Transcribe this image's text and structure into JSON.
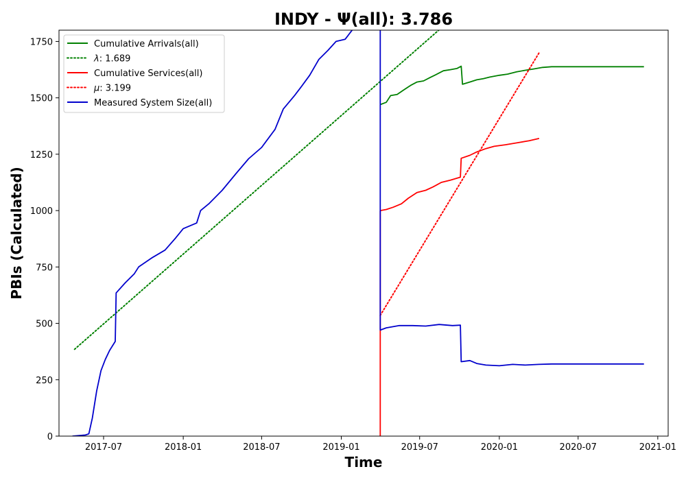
{
  "chart_data": {
    "type": "line",
    "title": "INDY -  Ψ(all): 3.786",
    "xlabel": "Time",
    "ylabel": "PBIs (Calculated)",
    "xlim": [
      "2017-03-20",
      "2021-01-25"
    ],
    "ylim": [
      0,
      1800
    ],
    "grid": false,
    "legend_position": "upper-left",
    "x_ticks": [
      "2017-07",
      "2018-01",
      "2018-07",
      "2019-01",
      "2019-07",
      "2020-01",
      "2020-07",
      "2021-01"
    ],
    "x_tick_dates": [
      "2017-07-01",
      "2018-01-01",
      "2018-07-01",
      "2019-01-01",
      "2019-07-01",
      "2020-01-01",
      "2020-07-01",
      "2021-01-01"
    ],
    "y_ticks": [
      0,
      250,
      500,
      750,
      1000,
      1250,
      1500,
      1750
    ],
    "series": [
      {
        "name": "Cumulative Arrivals(all)",
        "color": "#008000",
        "style": "solid",
        "points": [
          [
            "2019-04-01",
            1470
          ],
          [
            "2019-04-15",
            1480
          ],
          [
            "2019-04-25",
            1510
          ],
          [
            "2019-05-10",
            1515
          ],
          [
            "2019-05-25",
            1535
          ],
          [
            "2019-06-10",
            1555
          ],
          [
            "2019-06-25",
            1570
          ],
          [
            "2019-07-10",
            1575
          ],
          [
            "2019-07-25",
            1590
          ],
          [
            "2019-08-10",
            1605
          ],
          [
            "2019-08-25",
            1620
          ],
          [
            "2019-09-10",
            1625
          ],
          [
            "2019-09-25",
            1630
          ],
          [
            "2019-10-05",
            1640
          ],
          [
            "2019-10-08",
            1560
          ],
          [
            "2019-10-25",
            1570
          ],
          [
            "2019-11-10",
            1580
          ],
          [
            "2019-11-25",
            1585
          ],
          [
            "2019-12-10",
            1592
          ],
          [
            "2020-01-01",
            1600
          ],
          [
            "2020-01-20",
            1605
          ],
          [
            "2020-02-10",
            1615
          ],
          [
            "2020-03-01",
            1622
          ],
          [
            "2020-03-20",
            1628
          ],
          [
            "2020-04-10",
            1635
          ],
          [
            "2020-05-01",
            1638
          ],
          [
            "2020-07-01",
            1638
          ],
          [
            "2020-11-30",
            1638
          ]
        ]
      },
      {
        "name": "λ: 1.689",
        "legend_parts": [
          "λ",
          ": 1.689"
        ],
        "color": "#008000",
        "style": "dotted",
        "points": [
          [
            "2017-04-25",
            385
          ],
          [
            "2019-08-20",
            1810
          ]
        ]
      },
      {
        "name": "Cumulative Services(all)",
        "color": "#ff0000",
        "style": "solid",
        "points": [
          [
            "2019-04-01",
            0
          ],
          [
            "2019-04-01",
            1000
          ],
          [
            "2019-04-15",
            1005
          ],
          [
            "2019-05-01",
            1015
          ],
          [
            "2019-05-20",
            1030
          ],
          [
            "2019-06-05",
            1055
          ],
          [
            "2019-06-25",
            1080
          ],
          [
            "2019-07-15",
            1090
          ],
          [
            "2019-08-01",
            1105
          ],
          [
            "2019-08-20",
            1125
          ],
          [
            "2019-09-10",
            1135
          ],
          [
            "2019-10-03",
            1148
          ],
          [
            "2019-10-05",
            1232
          ],
          [
            "2019-10-25",
            1245
          ],
          [
            "2019-11-10",
            1260
          ],
          [
            "2019-12-01",
            1275
          ],
          [
            "2019-12-20",
            1285
          ],
          [
            "2020-01-15",
            1292
          ],
          [
            "2020-02-10",
            1300
          ],
          [
            "2020-03-10",
            1310
          ],
          [
            "2020-04-02",
            1320
          ]
        ]
      },
      {
        "name": "μ: 3.199",
        "legend_parts": [
          "μ",
          ": 3.199"
        ],
        "color": "#ff0000",
        "style": "dotted",
        "points": [
          [
            "2019-04-01",
            535
          ],
          [
            "2020-04-02",
            1700
          ]
        ]
      },
      {
        "name": "Measured System Size(all)",
        "color": "#0000cc",
        "style": "solid",
        "points": [
          [
            "2017-04-20",
            0
          ],
          [
            "2017-05-20",
            5
          ],
          [
            "2017-05-28",
            10
          ],
          [
            "2017-06-05",
            80
          ],
          [
            "2017-06-15",
            200
          ],
          [
            "2017-06-25",
            290
          ],
          [
            "2017-07-05",
            340
          ],
          [
            "2017-07-15",
            380
          ],
          [
            "2017-07-28",
            420
          ],
          [
            "2017-07-30",
            635
          ],
          [
            "2017-08-20",
            680
          ],
          [
            "2017-09-10",
            720
          ],
          [
            "2017-09-20",
            750
          ],
          [
            "2017-10-20",
            790
          ],
          [
            "2017-11-20",
            825
          ],
          [
            "2017-12-15",
            880
          ],
          [
            "2018-01-01",
            920
          ],
          [
            "2018-02-01",
            945
          ],
          [
            "2018-02-10",
            1000
          ],
          [
            "2018-03-01",
            1030
          ],
          [
            "2018-04-01",
            1090
          ],
          [
            "2018-05-01",
            1160
          ],
          [
            "2018-06-01",
            1230
          ],
          [
            "2018-07-01",
            1280
          ],
          [
            "2018-08-01",
            1360
          ],
          [
            "2018-08-20",
            1450
          ],
          [
            "2018-09-15",
            1510
          ],
          [
            "2018-10-01",
            1550
          ],
          [
            "2018-10-20",
            1600
          ],
          [
            "2018-11-10",
            1670
          ],
          [
            "2018-12-01",
            1710
          ],
          [
            "2018-12-20",
            1750
          ],
          [
            "2019-01-10",
            1760
          ],
          [
            "2019-01-30",
            1810
          ],
          [
            "2019-04-01",
            1810
          ],
          [
            "2019-04-01",
            470
          ],
          [
            "2019-04-15",
            480
          ],
          [
            "2019-05-15",
            490
          ],
          [
            "2019-06-15",
            490
          ],
          [
            "2019-07-15",
            488
          ],
          [
            "2019-08-15",
            495
          ],
          [
            "2019-09-15",
            490
          ],
          [
            "2019-10-03",
            492
          ],
          [
            "2019-10-05",
            330
          ],
          [
            "2019-10-25",
            335
          ],
          [
            "2019-11-10",
            322
          ],
          [
            "2019-12-01",
            315
          ],
          [
            "2020-01-01",
            312
          ],
          [
            "2020-02-01",
            318
          ],
          [
            "2020-03-01",
            315
          ],
          [
            "2020-04-01",
            318
          ],
          [
            "2020-05-01",
            320
          ],
          [
            "2020-11-30",
            320
          ]
        ]
      }
    ]
  }
}
